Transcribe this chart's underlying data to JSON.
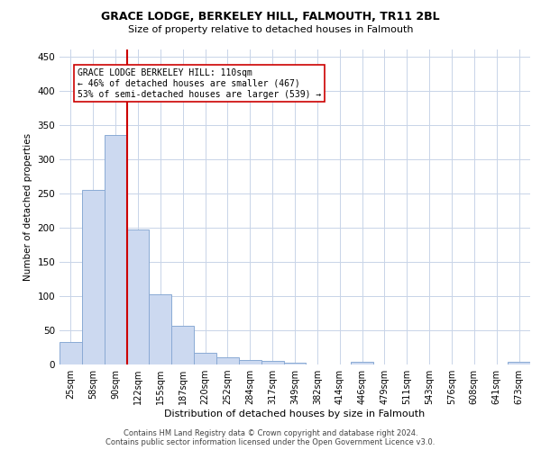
{
  "title": "GRACE LODGE, BERKELEY HILL, FALMOUTH, TR11 2BL",
  "subtitle": "Size of property relative to detached houses in Falmouth",
  "xlabel": "Distribution of detached houses by size in Falmouth",
  "ylabel": "Number of detached properties",
  "bar_labels": [
    "25sqm",
    "58sqm",
    "90sqm",
    "122sqm",
    "155sqm",
    "187sqm",
    "220sqm",
    "252sqm",
    "284sqm",
    "317sqm",
    "349sqm",
    "382sqm",
    "414sqm",
    "446sqm",
    "479sqm",
    "511sqm",
    "543sqm",
    "576sqm",
    "608sqm",
    "641sqm",
    "673sqm"
  ],
  "bar_values": [
    33,
    255,
    335,
    197,
    103,
    56,
    17,
    10,
    7,
    5,
    3,
    0,
    0,
    4,
    0,
    0,
    0,
    0,
    0,
    0,
    4
  ],
  "bar_color": "#ccd9f0",
  "bar_edge_color": "#8aaad4",
  "vline_color": "#cc0000",
  "annotation_text": "GRACE LODGE BERKELEY HILL: 110sqm\n← 46% of detached houses are smaller (467)\n53% of semi-detached houses are larger (539) →",
  "annotation_box_color": "#ffffff",
  "annotation_box_edge_color": "#cc0000",
  "ylim": [
    0,
    460
  ],
  "yticks": [
    0,
    50,
    100,
    150,
    200,
    250,
    300,
    350,
    400,
    450
  ],
  "footer": "Contains HM Land Registry data © Crown copyright and database right 2024.\nContains public sector information licensed under the Open Government Licence v3.0.",
  "bg_color": "#ffffff",
  "grid_color": "#c8d4e8",
  "title_fontsize": 9,
  "subtitle_fontsize": 8,
  "xlabel_fontsize": 8,
  "ylabel_fontsize": 7.5,
  "tick_fontsize": 7,
  "footer_fontsize": 6,
  "annotation_fontsize": 7
}
